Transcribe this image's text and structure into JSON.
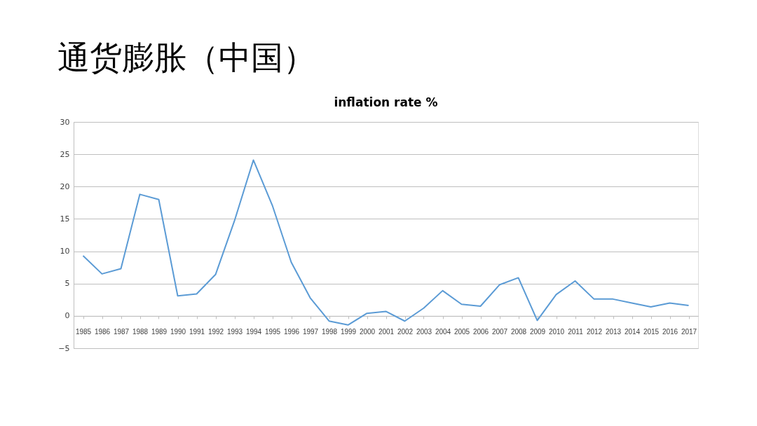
{
  "chart_data": {
    "type": "line",
    "title": "通货膨胀（中国）",
    "subtitle": "inflation rate %",
    "categories": [
      "1985",
      "1986",
      "1987",
      "1988",
      "1989",
      "1990",
      "1991",
      "1992",
      "1993",
      "1994",
      "1995",
      "1996",
      "1997",
      "1998",
      "1999",
      "2000",
      "2001",
      "2002",
      "2003",
      "2004",
      "2005",
      "2006",
      "2007",
      "2008",
      "2009",
      "2010",
      "2011",
      "2012",
      "2013",
      "2014",
      "2015",
      "2016",
      "2017"
    ],
    "series": [
      {
        "color": "#5b9bd5",
        "values": [
          9.3,
          6.5,
          7.3,
          18.8,
          18.0,
          3.1,
          3.4,
          6.4,
          14.7,
          24.1,
          17.1,
          8.3,
          2.8,
          -0.8,
          -1.4,
          0.4,
          0.7,
          -0.8,
          1.2,
          3.9,
          1.8,
          1.5,
          4.8,
          5.9,
          -0.7,
          3.3,
          5.4,
          2.6,
          2.6,
          2.0,
          1.4,
          2.0,
          1.6
        ]
      }
    ],
    "ylim": [
      -5,
      30
    ],
    "yticks": [
      -5,
      0,
      5,
      10,
      15,
      20,
      25,
      30
    ],
    "grid": "y",
    "legend": false,
    "marker": "none",
    "line_style": "solid"
  }
}
